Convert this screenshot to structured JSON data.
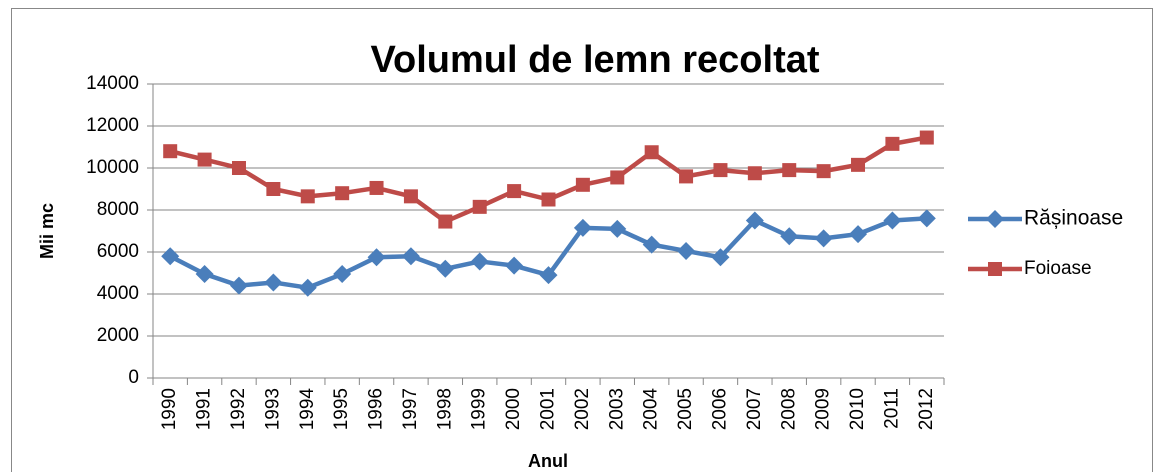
{
  "chart_data": {
    "type": "line",
    "title": "Volumul  de lemn recoltat",
    "xlabel": "Anul",
    "ylabel": "Mii mc",
    "categories": [
      "1990",
      "1991",
      "1992",
      "1993",
      "1994",
      "1995",
      "1996",
      "1997",
      "1998",
      "1999",
      "2000",
      "2001",
      "2002",
      "2003",
      "2004",
      "2005",
      "2006",
      "2007",
      "2008",
      "2009",
      "2010",
      "2011",
      "2012"
    ],
    "series": [
      {
        "name": "Rășinoase",
        "color": "#4a7ebb",
        "marker": "diamond",
        "values": [
          5800,
          4950,
          4400,
          4550,
          4300,
          4950,
          5750,
          5800,
          5200,
          5550,
          5350,
          4900,
          7150,
          7100,
          6350,
          6050,
          5750,
          7500,
          6750,
          6650,
          6850,
          7500,
          7600
        ]
      },
      {
        "name": "Foioase",
        "color": "#be4b48",
        "marker": "square",
        "values": [
          10800,
          10400,
          10000,
          9000,
          8650,
          8800,
          9050,
          8650,
          7450,
          8150,
          8900,
          8500,
          9200,
          9550,
          10750,
          9600,
          9900,
          9750,
          9900,
          9850,
          10150,
          11150,
          11450
        ]
      }
    ],
    "ylim": [
      0,
      14000
    ],
    "yticks": [
      0,
      2000,
      4000,
      6000,
      8000,
      10000,
      12000,
      14000
    ],
    "grid": true,
    "legend": "right"
  }
}
